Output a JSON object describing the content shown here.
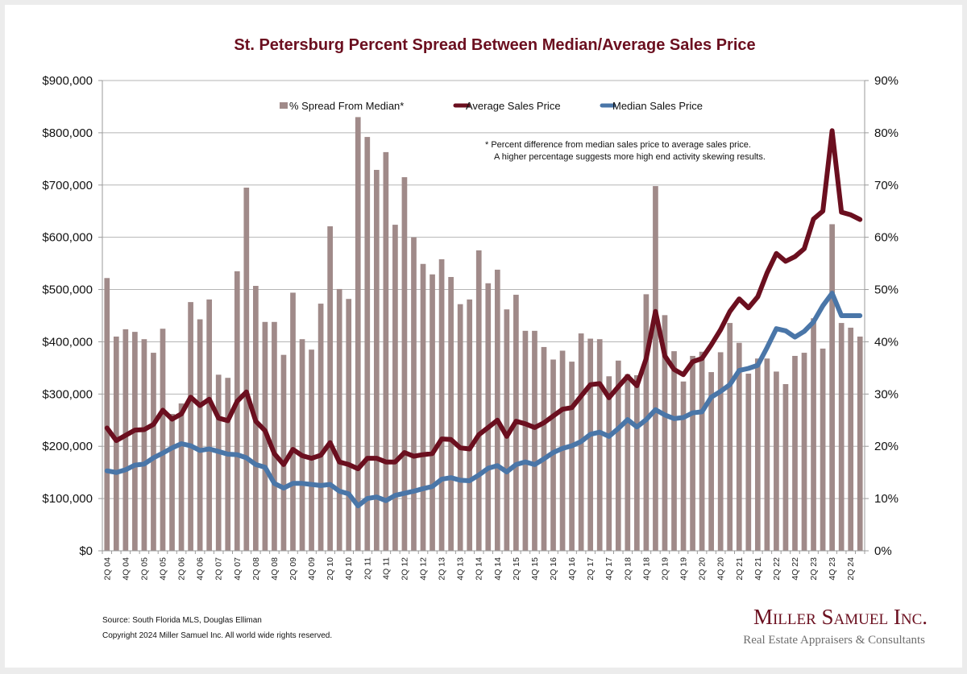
{
  "chart_data": {
    "type": "bar",
    "title": "St. Petersburg Percent Spread Between Median/Average Sales Price",
    "xlabel": "",
    "ylabel_left": "",
    "ylabel_right": "",
    "ylim_left": [
      0,
      900000
    ],
    "ylim_right": [
      0,
      90
    ],
    "yticks_left": [
      "$0",
      "$100,000",
      "$200,000",
      "$300,000",
      "$400,000",
      "$500,000",
      "$600,000",
      "$700,000",
      "$800,000",
      "$900,000"
    ],
    "yticks_right": [
      "0%",
      "10%",
      "20%",
      "30%",
      "40%",
      "50%",
      "60%",
      "70%",
      "80%",
      "90%"
    ],
    "grid": true,
    "legend_position": "top-center",
    "categories": [
      "2Q 04",
      "3Q 04",
      "4Q 04",
      "1Q 05",
      "2Q 05",
      "3Q 05",
      "4Q 05",
      "1Q 06",
      "2Q 06",
      "3Q 06",
      "4Q 06",
      "1Q 07",
      "2Q 07",
      "3Q 07",
      "4Q 07",
      "1Q 08",
      "2Q 08",
      "3Q 08",
      "4Q 08",
      "1Q 09",
      "2Q 09",
      "3Q 09",
      "4Q 09",
      "1Q 10",
      "2Q 10",
      "3Q 10",
      "4Q 10",
      "1Q 11",
      "2Q 11",
      "3Q 11",
      "4Q 11",
      "1Q 12",
      "2Q 12",
      "3Q 12",
      "4Q 12",
      "1Q 13",
      "2Q 13",
      "3Q 13",
      "4Q 13",
      "1Q 14",
      "2Q 14",
      "3Q 14",
      "4Q 14",
      "1Q 15",
      "2Q 15",
      "3Q 15",
      "4Q 15",
      "1Q 16",
      "2Q 16",
      "3Q 16",
      "4Q 16",
      "1Q 17",
      "2Q 17",
      "3Q 17",
      "4Q 17",
      "1Q 18",
      "2Q 18",
      "3Q 18",
      "4Q 18",
      "1Q 19",
      "2Q 19",
      "3Q 19",
      "4Q 19",
      "1Q 20",
      "2Q 20",
      "3Q 20",
      "4Q 20",
      "1Q 21",
      "2Q 21",
      "3Q 21",
      "4Q 21",
      "1Q 22",
      "2Q 22",
      "3Q 22",
      "4Q 22",
      "1Q 23",
      "2Q 23",
      "3Q 23",
      "4Q 23",
      "1Q 24",
      "2Q 24",
      "3Q 24"
    ],
    "x_tick_labels": [
      "2Q 04",
      "4Q 04",
      "2Q 05",
      "4Q 05",
      "2Q 06",
      "4Q 06",
      "2Q 07",
      "4Q 07",
      "2Q 08",
      "4Q 08",
      "2Q 09",
      "4Q 09",
      "2Q 10",
      "4Q 10",
      "2Q 11",
      "4Q 11",
      "2Q 12",
      "4Q 12",
      "2Q 13",
      "4Q 13",
      "2Q 14",
      "4Q 14",
      "2Q 15",
      "4Q 15",
      "2Q 16",
      "4Q 16",
      "2Q 17",
      "4Q 17",
      "2Q 18",
      "4Q 18",
      "2Q 19",
      "4Q 19",
      "2Q 20",
      "4Q 20",
      "2Q 21",
      "4Q 21",
      "2Q 22",
      "4Q 22",
      "2Q 23",
      "4Q 23",
      "2Q 24"
    ],
    "series": [
      {
        "name": "% Spread From Median*",
        "type": "bar",
        "axis": "right",
        "unit": "%",
        "color": "#a08a89",
        "values": [
          52.2,
          41.0,
          42.4,
          41.9,
          40.5,
          37.9,
          42.5,
          26.2,
          28.2,
          47.6,
          44.3,
          48.1,
          33.7,
          33.1,
          53.5,
          69.5,
          50.7,
          43.8,
          43.8,
          37.5,
          49.4,
          40.5,
          38.5,
          47.3,
          62.1,
          50.1,
          48.2,
          83.0,
          79.2,
          72.9,
          76.3,
          62.4,
          71.5,
          60.0,
          54.9,
          52.9,
          55.8,
          52.4,
          47.2,
          48.1,
          57.5,
          51.2,
          53.8,
          46.2,
          49.0,
          42.1,
          42.1,
          39.0,
          36.6,
          38.3,
          36.2,
          41.6,
          40.6,
          40.5,
          33.4,
          36.4,
          33.8,
          33.6,
          49.1,
          69.8,
          45.1,
          38.2,
          32.4,
          37.3,
          38.1,
          34.2,
          38.0,
          43.6,
          39.8,
          33.9,
          36.8,
          36.8,
          34.3,
          31.9,
          37.3,
          37.9,
          44.5,
          38.7,
          62.5,
          43.6,
          42.7,
          41.0
        ]
      },
      {
        "name": "Average Sales Price",
        "type": "line",
        "axis": "left",
        "unit": "USD",
        "color": "#6b0f1f",
        "values": [
          235000,
          211000,
          221000,
          231000,
          232000,
          242000,
          269000,
          252000,
          262000,
          294000,
          278000,
          290000,
          254000,
          249000,
          286000,
          304000,
          248000,
          230000,
          186000,
          165000,
          194000,
          182000,
          177000,
          183000,
          207000,
          170000,
          165000,
          157000,
          177000,
          177000,
          170000,
          170000,
          188000,
          181000,
          184000,
          186000,
          214000,
          213000,
          197000,
          195000,
          222000,
          236000,
          250000,
          219000,
          248000,
          243000,
          236000,
          245000,
          258000,
          271000,
          274000,
          296000,
          318000,
          320000,
          293000,
          314000,
          334000,
          316000,
          368000,
          458000,
          373000,
          347000,
          337000,
          362000,
          368000,
          394000,
          423000,
          458000,
          482000,
          465000,
          486000,
          532000,
          569000,
          554000,
          563000,
          578000,
          635000,
          650000,
          804000,
          648000,
          643000,
          634000
        ]
      },
      {
        "name": "Median Sales Price",
        "type": "line",
        "axis": "left",
        "unit": "USD",
        "color": "#4a76a8",
        "values": [
          153000,
          150000,
          155000,
          164000,
          166000,
          178000,
          187000,
          197000,
          205000,
          201000,
          192000,
          195000,
          190000,
          185000,
          184000,
          178000,
          165000,
          160000,
          129000,
          120000,
          129000,
          129000,
          127000,
          125000,
          127000,
          114000,
          109000,
          86000,
          100000,
          103000,
          96000,
          106000,
          110000,
          114000,
          119000,
          123000,
          137000,
          140000,
          135000,
          134000,
          145000,
          158000,
          163000,
          151000,
          165000,
          170000,
          165000,
          176000,
          188000,
          196000,
          201000,
          209000,
          223000,
          227000,
          219000,
          234000,
          251000,
          237000,
          251000,
          270000,
          260000,
          253000,
          255000,
          264000,
          266000,
          294000,
          305000,
          318000,
          345000,
          349000,
          355000,
          389000,
          425000,
          421000,
          409000,
          420000,
          438000,
          469000,
          493000,
          450000,
          450000,
          450000
        ]
      }
    ],
    "annotations": [
      "*  Percent difference from median sales price to average sales price.",
      "A higher percentage suggests more high end activity skewing results."
    ]
  },
  "legend": {
    "spread_label": "% Spread From Median*",
    "average_label": "Average Sales Price",
    "median_label": "Median Sales Price"
  },
  "footer": {
    "source": "Source: South Florida MLS, Douglas Elliman",
    "copyright": "Copyright 2024 Miller Samuel Inc.  All world wide rights reserved.",
    "brand_name": "Miller Samuel Inc.",
    "brand_tagline": "Real Estate Appraisers & Consultants"
  },
  "colors": {
    "title": "#6b0f1f",
    "bar": "#a08a89",
    "average": "#6b0f1f",
    "median": "#4a76a8",
    "grid": "#b5b5b5",
    "brand_main": "#6b0f1f",
    "brand_sub": "#6e6e6e"
  }
}
